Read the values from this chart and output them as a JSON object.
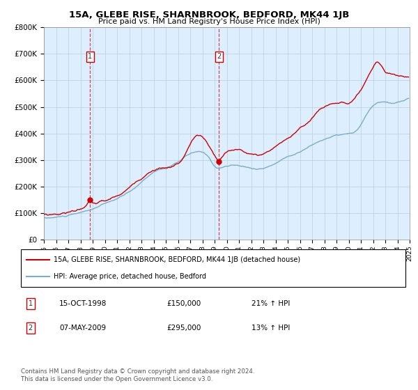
{
  "title": "15A, GLEBE RISE, SHARNBROOK, BEDFORD, MK44 1JB",
  "subtitle": "Price paid vs. HM Land Registry's House Price Index (HPI)",
  "legend_line1": "15A, GLEBE RISE, SHARNBROOK, BEDFORD, MK44 1JB (detached house)",
  "legend_line2": "HPI: Average price, detached house, Bedford",
  "transaction1_date": "15-OCT-1998",
  "transaction1_price": 150000,
  "transaction1_label": "21% ↑ HPI",
  "transaction2_date": "07-MAY-2009",
  "transaction2_price": 295000,
  "transaction2_label": "13% ↑ HPI",
  "footer": "Contains HM Land Registry data © Crown copyright and database right 2024.\nThis data is licensed under the Open Government Licence v3.0.",
  "t1_x": 1998.79,
  "t2_x": 2009.37,
  "t1_y": 150000,
  "t2_y": 295000,
  "xlim": [
    1995,
    2025
  ],
  "ylim": [
    0,
    800000
  ],
  "yticks": [
    0,
    100000,
    200000,
    300000,
    400000,
    500000,
    600000,
    700000,
    800000
  ],
  "xticks": [
    1995,
    1996,
    1997,
    1998,
    1999,
    2000,
    2001,
    2002,
    2003,
    2004,
    2005,
    2006,
    2007,
    2008,
    2009,
    2010,
    2011,
    2012,
    2013,
    2014,
    2015,
    2016,
    2017,
    2018,
    2019,
    2020,
    2021,
    2022,
    2023,
    2024,
    2025
  ],
  "red_color": "#cc0000",
  "blue_color": "#7aadcb",
  "bg_color": "#ddeeff",
  "grid_color": "#bbccdd",
  "marker_label_color": "#333333"
}
